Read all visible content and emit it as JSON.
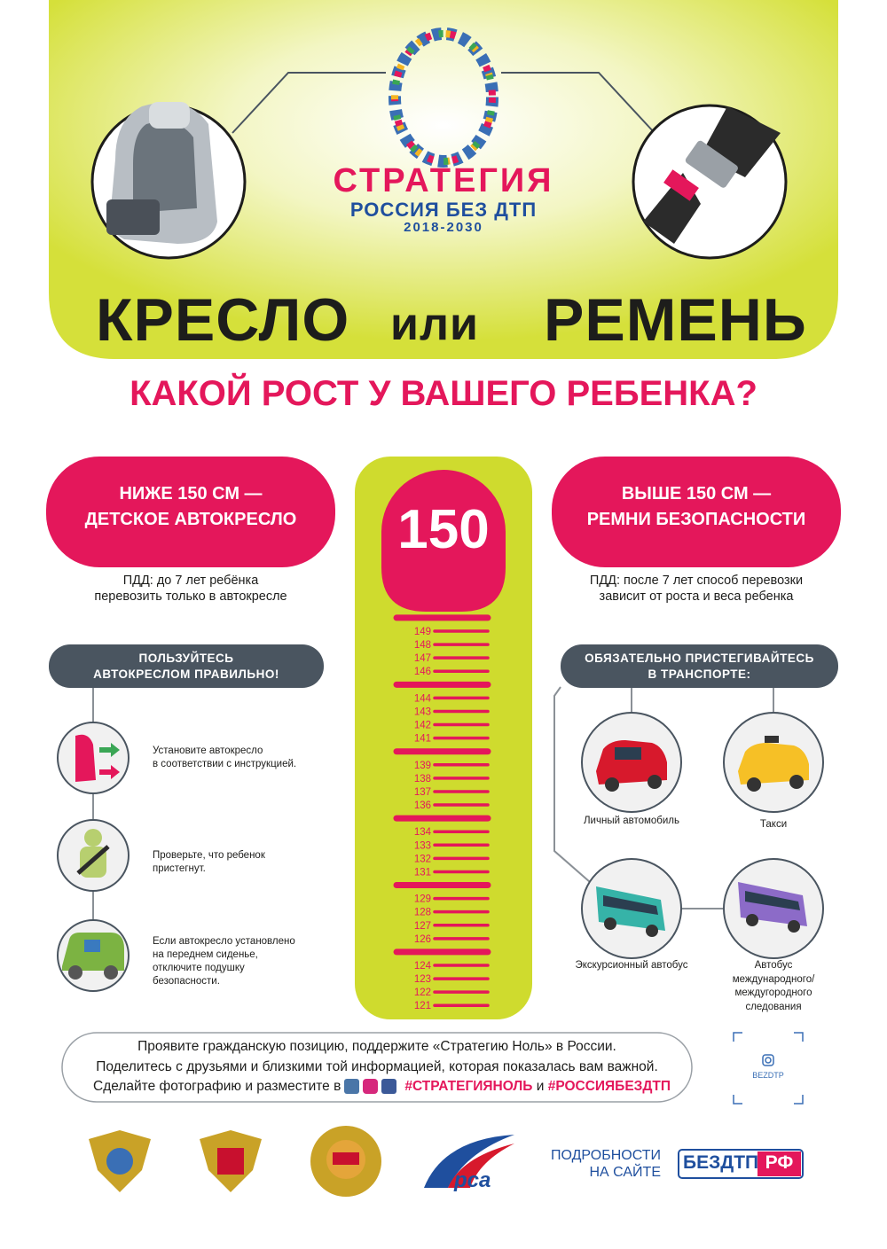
{
  "logo": {
    "line1": "СТРАТЕГИЯ",
    "line2": "РОССИЯ БЕЗ ДТП",
    "years": "2018-2030"
  },
  "headline": {
    "left": "КРЕСЛО",
    "middle": "или",
    "right": "РЕМЕНЬ"
  },
  "question": "КАКОЙ РОСТ У ВАШЕГО РЕБЕНКА?",
  "left": {
    "badge": [
      "НИЖЕ 150 СМ —",
      "ДЕТСКОЕ АВТОКРЕСЛО"
    ],
    "note": [
      "ПДД: до 7 лет ребёнка",
      "перевозить только в автокресле"
    ],
    "tips_title": [
      "ПОЛЬЗУЙТЕСЬ",
      "АВТОКРЕСЛОМ ПРАВИЛЬНО!"
    ],
    "tips": [
      [
        "Установите автокресло",
        "в соответствии с инструкцией."
      ],
      [
        "Проверьте, что ребенок",
        "пристегнут."
      ],
      [
        "Если автокресло установлено",
        "на переднем сиденье,",
        "отключите подушку",
        "безопасности."
      ]
    ]
  },
  "right": {
    "badge": [
      "ВЫШЕ 150 СМ —",
      "РЕМНИ БЕЗОПАСНОСТИ"
    ],
    "note": [
      "ПДД: после 7 лет способ перевозки",
      "зависит от роста и веса ребенка"
    ],
    "transport_title": [
      "ОБЯЗАТЕЛЬНО ПРИСТЕГИВАЙТЕСЬ",
      "В ТРАНСПОРТЕ:"
    ],
    "transport": [
      [
        "Личный автомобиль"
      ],
      [
        "Такси"
      ],
      [
        "Экскурсионный автобус"
      ],
      [
        "Автобус",
        "международного/",
        "междугородного",
        "следования"
      ]
    ]
  },
  "ruler": {
    "top": "150",
    "marks": [
      149,
      148,
      147,
      146,
      144,
      143,
      142,
      141,
      139,
      138,
      137,
      136,
      134,
      133,
      132,
      131,
      129,
      128,
      127,
      126,
      124,
      123,
      122,
      121
    ]
  },
  "footer": {
    "lines": [
      "Проявите гражданскую позицию, поддержите «Стратегию Ноль» в России.",
      "Поделитесь с друзьями и близкими той информацией, которая показалась вам важной."
    ],
    "line3": "Сделайте фотографию и разместите в",
    "hashtag1": "#СТРАТЕГИЯНОЛЬ",
    "and": "и",
    "hashtag2": "#РОССИЯБЕЗДТП"
  },
  "instagram": "BEZDTP",
  "site": {
    "label": [
      "ПОДРОБНОСТИ",
      "НА САЙТЕ"
    ],
    "name": "БЕЗДТП",
    "zone": "РФ"
  },
  "rsa": "рса"
}
